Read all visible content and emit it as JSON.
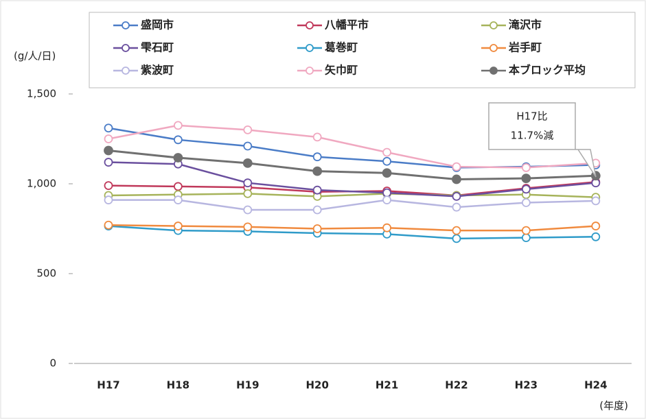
{
  "chart_data": {
    "type": "line",
    "y_label": "(g/人/日)",
    "x_label": "(年度)",
    "annotation": [
      "H17比",
      "11.7%減"
    ],
    "categories": [
      "H17",
      "H18",
      "H19",
      "H20",
      "H21",
      "H22",
      "H23",
      "H24"
    ],
    "ylim": [
      0,
      1500
    ],
    "yticks": [
      0,
      500,
      {
        "value": 1000,
        "label": "1,000"
      },
      {
        "value": 1500,
        "label": "1,500"
      }
    ],
    "grid": false,
    "series": [
      {
        "name": "盛岡市",
        "color": "#4a7cc7",
        "values": [
          1310,
          1245,
          1210,
          1150,
          1125,
          1090,
          1095,
          1105
        ]
      },
      {
        "name": "八幡平市",
        "color": "#c0385a",
        "values": [
          990,
          985,
          980,
          955,
          960,
          935,
          975,
          1010
        ]
      },
      {
        "name": "滝沢市",
        "color": "#a6b35a",
        "values": [
          935,
          940,
          945,
          930,
          945,
          935,
          940,
          925
        ]
      },
      {
        "name": "雫石町",
        "color": "#6a4f9e",
        "values": [
          1120,
          1110,
          1005,
          965,
          950,
          930,
          970,
          1005
        ]
      },
      {
        "name": "葛巻町",
        "color": "#2f9bc9",
        "values": [
          765,
          740,
          735,
          725,
          720,
          695,
          700,
          705
        ]
      },
      {
        "name": "岩手町",
        "color": "#f08a3e",
        "values": [
          770,
          765,
          760,
          750,
          755,
          740,
          740,
          765
        ]
      },
      {
        "name": "紫波町",
        "color": "#b7b6e0",
        "values": [
          910,
          910,
          855,
          855,
          910,
          870,
          895,
          905
        ]
      },
      {
        "name": "矢巾町",
        "color": "#f0a8c0",
        "values": [
          1250,
          1325,
          1300,
          1260,
          1175,
          1095,
          1090,
          1115
        ]
      },
      {
        "name": "本ブロック平均",
        "color": "#707070",
        "filled": true,
        "values": [
          1185,
          1145,
          1115,
          1070,
          1060,
          1025,
          1030,
          1045
        ]
      }
    ]
  }
}
